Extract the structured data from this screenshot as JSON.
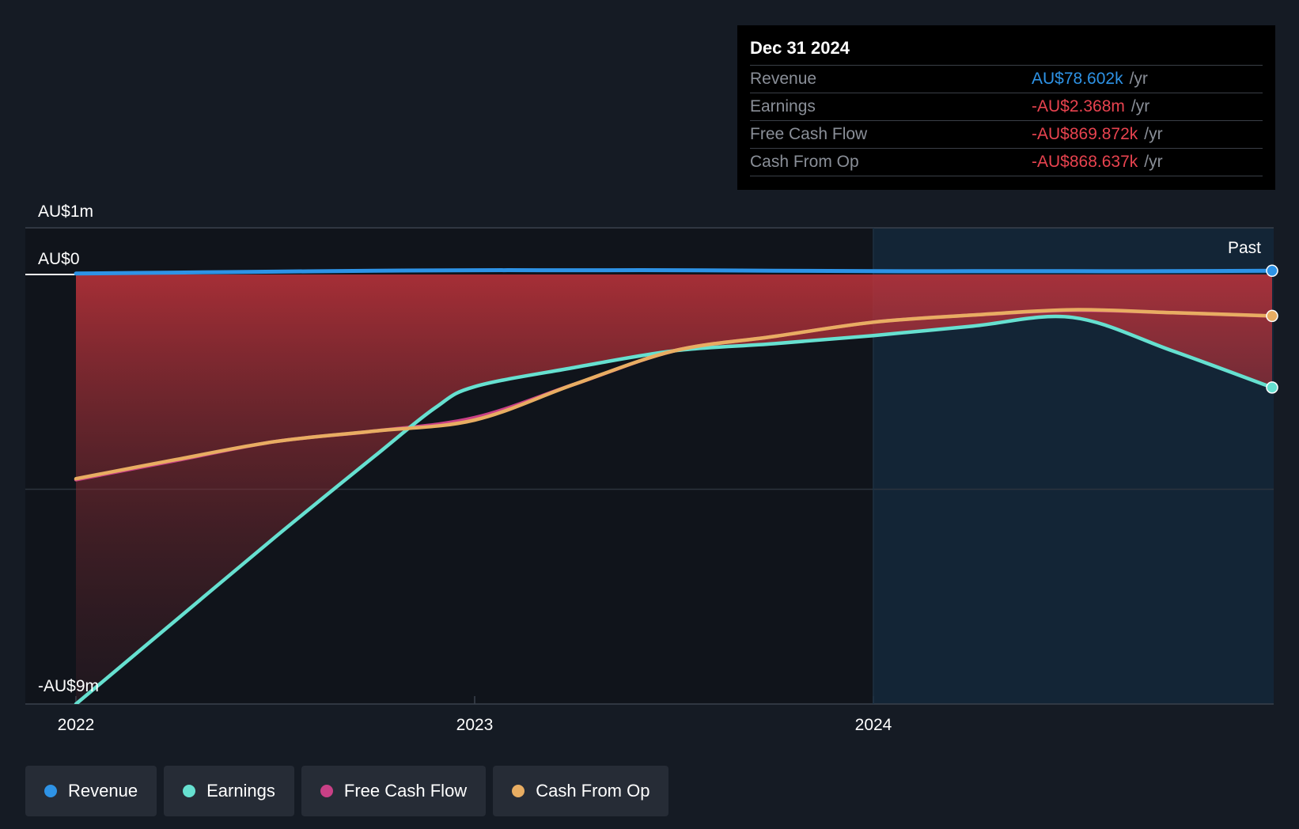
{
  "tooltip": {
    "date": "Dec 31 2024",
    "rows": [
      {
        "label": "Revenue",
        "value": "AU$78.602k",
        "unit": "/yr",
        "color": "#2e93e6"
      },
      {
        "label": "Earnings",
        "value": "-AU$2.368m",
        "unit": "/yr",
        "color": "#e8434f"
      },
      {
        "label": "Free Cash Flow",
        "value": "-AU$869.872k",
        "unit": "/yr",
        "color": "#e8434f"
      },
      {
        "label": "Cash From Op",
        "value": "-AU$868.637k",
        "unit": "/yr",
        "color": "#e8434f"
      }
    ]
  },
  "past_label": "Past",
  "legend": [
    {
      "label": "Revenue",
      "color": "#2e93e6"
    },
    {
      "label": "Earnings",
      "color": "#66e0d0"
    },
    {
      "label": "Free Cash Flow",
      "color": "#c94086"
    },
    {
      "label": "Cash From Op",
      "color": "#e8ad62"
    }
  ],
  "chart_data": {
    "type": "line",
    "title": "",
    "xlabel": "",
    "ylabel": "",
    "ylim": [
      -9.0,
      1.0
    ],
    "y_unit": "AU$ millions",
    "y_tick_labels": [
      {
        "value": 1.0,
        "label": "AU$1m"
      },
      {
        "value": 0.0,
        "label": "AU$0"
      },
      {
        "value": -9.0,
        "label": "-AU$9m"
      }
    ],
    "x_tick_labels": [
      {
        "value": 2022.0,
        "label": "2022"
      },
      {
        "value": 2023.0,
        "label": "2023"
      },
      {
        "value": 2024.0,
        "label": "2024"
      }
    ],
    "xlim": [
      2022.0,
      2025.0
    ],
    "past_region_start": 2024.0,
    "grid": "horizontal",
    "series": [
      {
        "name": "Revenue",
        "color": "#2e93e6",
        "x": [
          2022.0,
          2022.25,
          2022.5,
          2022.75,
          2023.0,
          2023.25,
          2023.5,
          2023.75,
          2024.0,
          2024.25,
          2024.5,
          2024.75,
          2025.0
        ],
        "y": [
          0.02,
          0.04,
          0.06,
          0.08,
          0.09,
          0.09,
          0.09,
          0.08,
          0.07,
          0.07,
          0.07,
          0.07,
          0.078
        ]
      },
      {
        "name": "Earnings",
        "color": "#66e0d0",
        "x": [
          2022.0,
          2022.25,
          2022.5,
          2022.75,
          2022.9,
          2023.0,
          2023.25,
          2023.5,
          2023.75,
          2024.0,
          2024.25,
          2024.5,
          2024.75,
          2025.0
        ],
        "y": [
          -9.0,
          -7.25,
          -5.5,
          -3.8,
          -2.8,
          -2.35,
          -1.95,
          -1.6,
          -1.45,
          -1.28,
          -1.08,
          -0.9,
          -1.6,
          -2.368
        ]
      },
      {
        "name": "Free Cash Flow",
        "color": "#c94086",
        "x": [
          2022.0,
          2022.25,
          2022.5,
          2022.75,
          2023.0,
          2023.25,
          2023.5,
          2023.75,
          2024.0,
          2024.25,
          2024.5,
          2024.75,
          2025.0
        ],
        "y": [
          -4.3,
          -3.9,
          -3.5,
          -3.28,
          -3.0,
          -2.3,
          -1.6,
          -1.3,
          -1.0,
          -0.85,
          -0.75,
          -0.8,
          -0.87
        ]
      },
      {
        "name": "Cash From Op",
        "color": "#e8ad62",
        "x": [
          2022.0,
          2022.25,
          2022.5,
          2022.75,
          2023.0,
          2023.25,
          2023.5,
          2023.75,
          2024.0,
          2024.25,
          2024.5,
          2024.75,
          2025.0
        ],
        "y": [
          -4.28,
          -3.88,
          -3.5,
          -3.28,
          -3.05,
          -2.3,
          -1.6,
          -1.3,
          -1.0,
          -0.85,
          -0.74,
          -0.8,
          -0.869
        ]
      }
    ]
  }
}
